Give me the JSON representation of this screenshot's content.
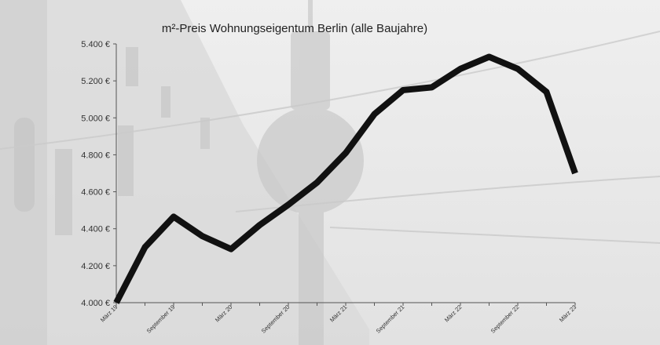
{
  "chart_data": {
    "type": "line",
    "title": "m²-Preis Wohnungseigentum Berlin (alle Baujahre)",
    "xlabel": "",
    "ylabel": "",
    "ylim": [
      4000,
      5400
    ],
    "yticks": [
      "4.000 €",
      "4.200 €",
      "4.400 €",
      "4.600 €",
      "4.800 €",
      "5.000 €",
      "5.200 €",
      "5.400 €"
    ],
    "ytick_values": [
      4000,
      4200,
      4400,
      4600,
      4800,
      5000,
      5200,
      5400
    ],
    "x": [
      "März 19",
      "Juni 19",
      "September 19",
      "Dezember 19",
      "März 20",
      "Juni 20",
      "September 20",
      "Dezember 20",
      "März 21",
      "Juni 21",
      "September 21",
      "Dezember 21",
      "März 22",
      "Juni 22",
      "September 22",
      "Dezember 22",
      "März 23"
    ],
    "xticks_labeled": [
      "März 19",
      "September 19",
      "März 20",
      "September 20",
      "März 21",
      "September 21",
      "März 22",
      "September 22",
      "März 23"
    ],
    "series": [
      {
        "values": [
          4000,
          4300,
          4465,
          4360,
          4290,
          4420,
          4530,
          4650,
          4810,
          5020,
          5150,
          5165,
          5265,
          5330,
          5265,
          5140,
          4700
        ]
      }
    ],
    "line_color": "#111111",
    "grid": false,
    "legend": "none"
  }
}
